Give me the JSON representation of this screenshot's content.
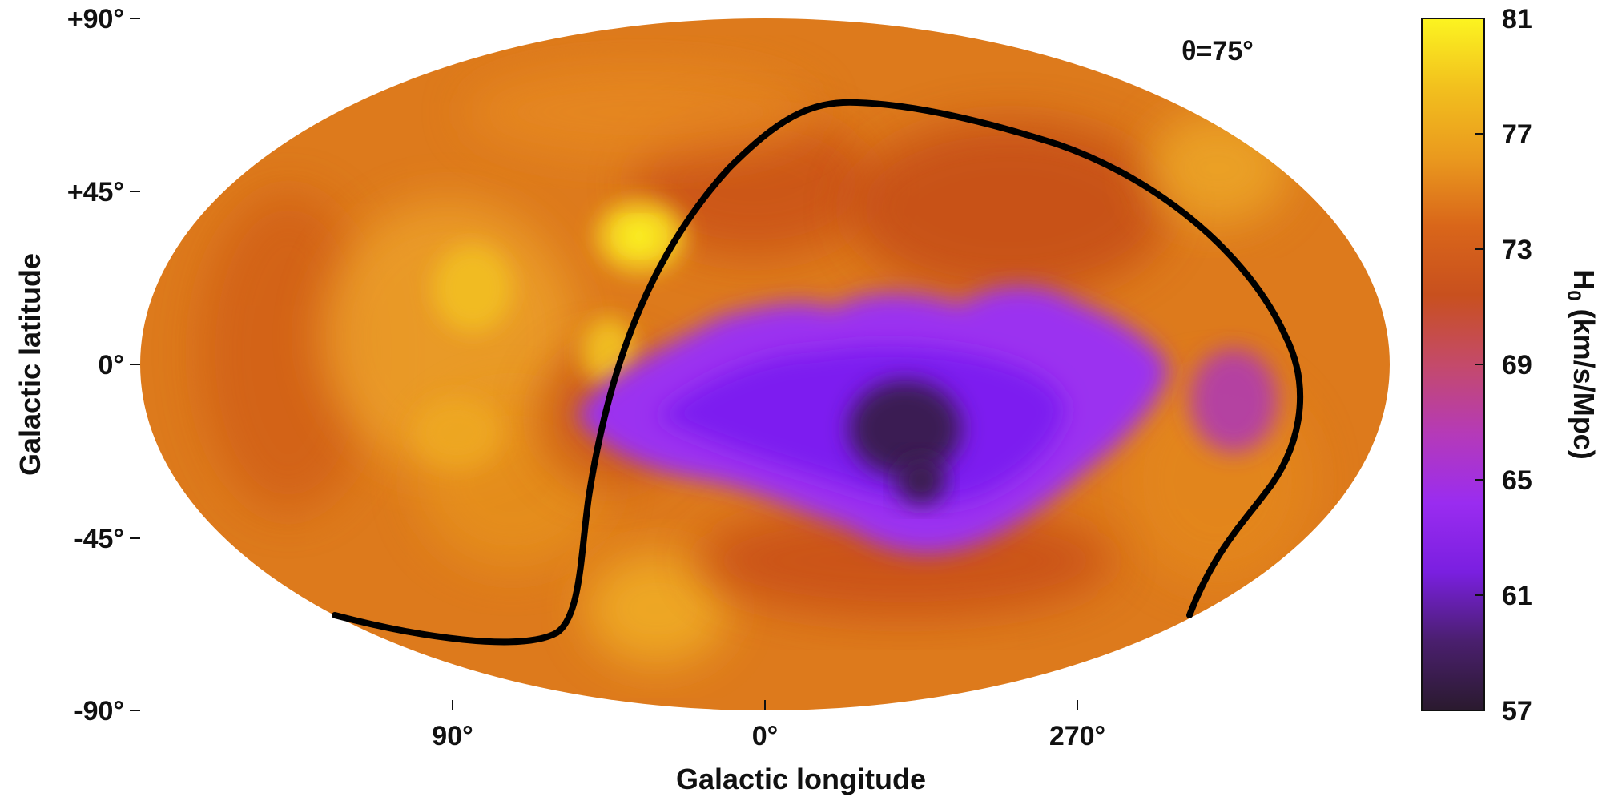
{
  "chart_data": {
    "type": "heatmap",
    "projection": "mollweide",
    "title": "",
    "annotation": "θ=75°",
    "xlabel": "Galactic longitude",
    "ylabel": "Galactic latitude",
    "x_ticks": [
      "90°",
      "0°",
      "270°"
    ],
    "y_ticks": [
      "+90°",
      "+45°",
      "0°",
      "-45°",
      "-90°"
    ],
    "colorbar": {
      "label": "H0 (km/s/Mpc)",
      "label_main": "H",
      "label_sub": "0",
      "label_rest": " (km/s/Mpc)",
      "min": 57,
      "max": 81,
      "ticks": [
        "81",
        "77",
        "73",
        "69",
        "65",
        "61",
        "57"
      ],
      "colors": [
        "#2a1a2e",
        "#4a1f6e",
        "#7a1fe0",
        "#9a2cf0",
        "#b53ab8",
        "#c44a6a",
        "#c8501e",
        "#d9661a",
        "#ea9a1e",
        "#f2c01e",
        "#fcf420"
      ]
    },
    "background_level": "orange-red (~71–77)",
    "features": [
      {
        "description": "low-H0 purple region, deepest minimum",
        "lon": 330,
        "lat": -15,
        "value": 57
      },
      {
        "description": "purple region extent",
        "lon_range": [
          20,
          280
        ],
        "lat_range": [
          -50,
          25
        ],
        "value": 63
      },
      {
        "description": "bright yellow hot spot",
        "lon": 40,
        "lat": 35,
        "value": 81
      },
      {
        "description": "yellow patch",
        "lon": 100,
        "lat": 20,
        "value": 78
      }
    ],
    "curve": {
      "description": "black contour line at θ=75°",
      "color": "#000000"
    }
  }
}
